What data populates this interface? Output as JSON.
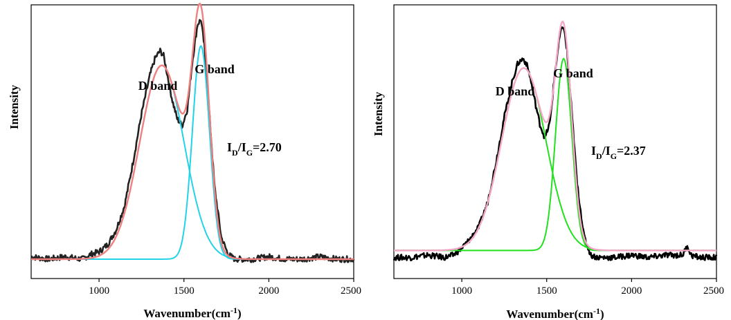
{
  "chart_data": [
    {
      "type": "line",
      "xlabel": "Wavenumber(cm",
      "xlabel_sup": "-1",
      "xlabel_end": ")",
      "ylabel": "Intensity",
      "xlim": [
        600,
        2500
      ],
      "ylim": [
        -0.08,
        1.05
      ],
      "xticks": [
        1000,
        1500,
        2000,
        2500
      ],
      "xtick_labels": [
        "1000",
        "1500",
        "2000",
        "2500"
      ],
      "annotations": {
        "d_band": "D band",
        "g_band": "G band",
        "ratio_I": "I",
        "ratio_D": "D",
        "ratio_slash": "/I",
        "ratio_G": "G",
        "ratio_value": "=2.70"
      },
      "colors": {
        "data": "#222222",
        "fit": "#f08080",
        "components": "#22d3e8"
      },
      "series": [
        {
          "role": "raw-data",
          "x": [
            600,
            700,
            800,
            900,
            950,
            1000,
            1050,
            1100,
            1150,
            1200,
            1250,
            1300,
            1330,
            1360,
            1380,
            1400,
            1430,
            1460,
            1490,
            1520,
            1550,
            1580,
            1600,
            1620,
            1650,
            1680,
            1720,
            1760,
            1800,
            1900,
            2000,
            2100,
            2200,
            2300,
            2400,
            2500
          ],
          "y": [
            0.01,
            0.0,
            0.01,
            0.0,
            0.02,
            0.03,
            0.06,
            0.12,
            0.22,
            0.4,
            0.6,
            0.76,
            0.83,
            0.86,
            0.84,
            0.77,
            0.66,
            0.58,
            0.55,
            0.62,
            0.82,
            0.97,
            0.99,
            0.88,
            0.6,
            0.3,
            0.09,
            0.02,
            0.0,
            0.0,
            0.01,
            0.0,
            0.0,
            0.01,
            0.0,
            0.0
          ]
        }
      ],
      "peaks": {
        "d_band": {
          "center": 1370,
          "height": 0.8,
          "width": 130
        },
        "g_band": {
          "center": 1600,
          "height": 0.88,
          "width": 50
        }
      }
    },
    {
      "type": "line",
      "xlabel": "Wavenumber(cm",
      "xlabel_sup": "-1",
      "xlabel_end": ")",
      "ylabel": "Intensity",
      "xlim": [
        600,
        2500
      ],
      "ylim": [
        -0.12,
        1.05
      ],
      "xticks": [
        1000,
        1500,
        2000,
        2500
      ],
      "xtick_labels": [
        "1000",
        "1500",
        "2000",
        "2500"
      ],
      "annotations": {
        "d_band": "D band",
        "g_band": "G band",
        "ratio_I": "I",
        "ratio_D": "D",
        "ratio_slash": "/I",
        "ratio_G": "G",
        "ratio_value": "=2.37"
      },
      "colors": {
        "data": "#000000",
        "fit": "#f4a6c8",
        "components": "#22e01e"
      },
      "series": [
        {
          "role": "raw-data",
          "x": [
            600,
            700,
            800,
            900,
            950,
            1000,
            1050,
            1100,
            1150,
            1200,
            1250,
            1300,
            1330,
            1360,
            1380,
            1400,
            1430,
            1460,
            1490,
            1520,
            1550,
            1580,
            1600,
            1620,
            1650,
            1680,
            1720,
            1760,
            1800,
            1900,
            2000,
            2100,
            2200,
            2300,
            2330,
            2350,
            2400,
            2500
          ],
          "y": [
            -0.03,
            -0.03,
            -0.02,
            -0.03,
            -0.02,
            0.01,
            0.05,
            0.1,
            0.2,
            0.37,
            0.57,
            0.73,
            0.8,
            0.82,
            0.8,
            0.75,
            0.64,
            0.54,
            0.48,
            0.55,
            0.77,
            0.93,
            0.96,
            0.85,
            0.57,
            0.28,
            0.06,
            -0.02,
            -0.03,
            -0.03,
            -0.02,
            -0.03,
            -0.02,
            -0.02,
            0.02,
            -0.02,
            -0.03,
            -0.03
          ]
        }
      ],
      "peaks": {
        "d_band": {
          "center": 1365,
          "height": 0.78,
          "width": 130
        },
        "g_band": {
          "center": 1600,
          "height": 0.82,
          "width": 48
        }
      }
    }
  ]
}
